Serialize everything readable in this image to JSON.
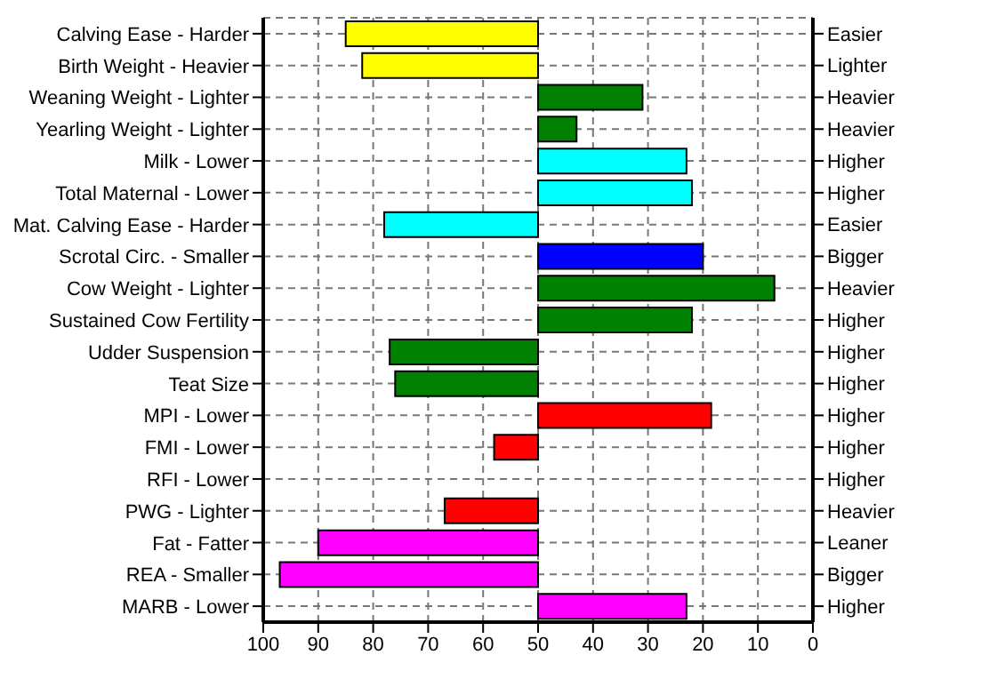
{
  "chart_data": {
    "type": "bar",
    "orientation": "horizontal",
    "categories": [
      "Calving Ease - Harder",
      "Birth Weight - Heavier",
      "Weaning Weight - Lighter",
      "Yearling Weight - Lighter",
      "Milk - Lower",
      "Total Maternal - Lower",
      "Mat. Calving Ease - Harder",
      "Scrotal Circ. - Smaller",
      "Cow Weight - Lighter",
      "Sustained Cow Fertility",
      "Udder Suspension",
      "Teat Size",
      "MPI - Lower",
      "FMI - Lower",
      "RFI - Lower",
      "PWG - Lighter",
      "Fat - Fatter",
      "REA - Smaller",
      "MARB - Lower"
    ],
    "y2_categories": [
      "Easier",
      "Lighter",
      "Heavier",
      "Heavier",
      "Higher",
      "Higher",
      "Easier",
      "Bigger",
      "Heavier",
      "Higher",
      "Higher",
      "Higher",
      "Higher",
      "Higher",
      "Higher",
      "Heavier",
      "Leaner",
      "Bigger",
      "Higher"
    ],
    "base": [
      50,
      50,
      50,
      50,
      50,
      50,
      50,
      50,
      50,
      50,
      50,
      50,
      50,
      50,
      null,
      50,
      50,
      50,
      50
    ],
    "values": [
      35,
      32,
      -19,
      -7,
      -27,
      -28,
      28,
      -30,
      -43,
      -28,
      27,
      26,
      -31.5,
      8,
      null,
      17,
      40,
      47,
      -27
    ],
    "colors": [
      "#ffff00",
      "#ffff00",
      "#008000",
      "#008000",
      "#00ffff",
      "#00ffff",
      "#00ffff",
      "#0000ff",
      "#008000",
      "#008000",
      "#008000",
      "#008000",
      "#ff0000",
      "#ff0000",
      "#ff0000",
      "#ff0000",
      "#ff00ff",
      "#ff00ff",
      "#ff00ff"
    ],
    "xlim": [
      100,
      0
    ],
    "xticks": [
      100,
      90,
      80,
      70,
      60,
      50,
      40,
      30,
      20,
      10,
      0
    ],
    "grid": true,
    "legend": false
  }
}
